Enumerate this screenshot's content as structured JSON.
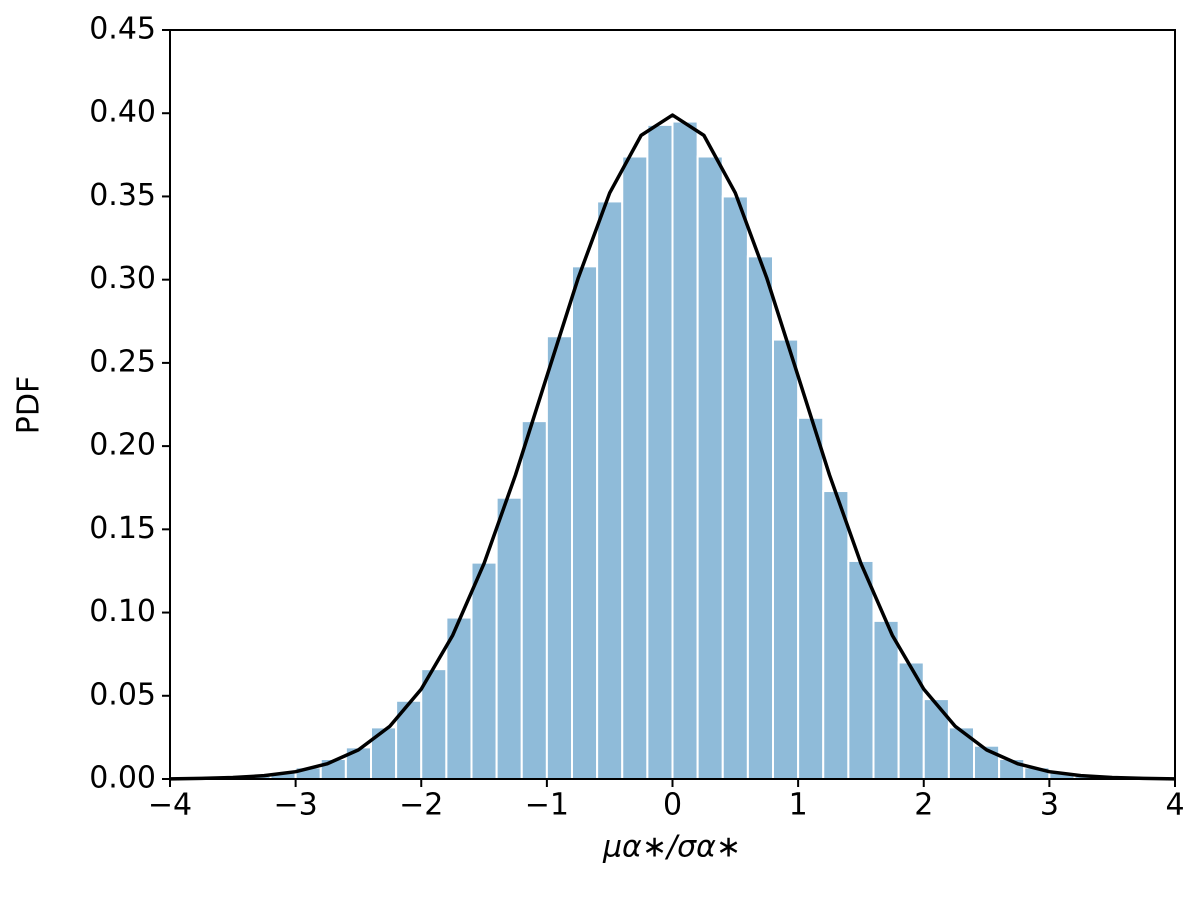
{
  "chart_data": {
    "type": "histogram",
    "xlabel": "μα∗/σα∗",
    "ylabel": "PDF",
    "bins": [
      -3.4,
      -3.2,
      -3.0,
      -2.8,
      -2.6,
      -2.4,
      -2.2,
      -2.0,
      -1.8,
      -1.6,
      -1.4,
      -1.2,
      -1.0,
      -0.8,
      -0.6,
      -0.4,
      -0.2,
      0,
      0.2,
      0.4,
      0.6,
      0.8,
      1.0,
      1.2,
      1.4,
      1.6,
      1.8,
      2.0,
      2.2,
      2.4,
      2.6,
      2.8,
      3.0,
      3.2,
      3.4
    ],
    "values": [
      0.002,
      0.004,
      0.007,
      0.012,
      0.019,
      0.031,
      0.047,
      0.066,
      0.097,
      0.13,
      0.169,
      0.215,
      0.266,
      0.308,
      0.347,
      0.374,
      0.393,
      0.395,
      0.374,
      0.35,
      0.314,
      0.264,
      0.217,
      0.173,
      0.131,
      0.095,
      0.07,
      0.048,
      0.031,
      0.02,
      0.012,
      0.007,
      0.004,
      0.002
    ],
    "color": "#8fbbd9",
    "curve": {
      "type": "line",
      "color": "#000000",
      "x": [
        -4,
        -3.75,
        -3.5,
        -3.25,
        -3,
        -2.75,
        -2.5,
        -2.25,
        -2,
        -1.75,
        -1.5,
        -1.25,
        -1,
        -0.75,
        -0.5,
        -0.25,
        0,
        0.25,
        0.5,
        0.75,
        1,
        1.25,
        1.5,
        1.75,
        2,
        2.25,
        2.5,
        2.75,
        3,
        3.25,
        3.5,
        3.75,
        4
      ],
      "y": [
        0.0001,
        0.0004,
        0.0009,
        0.002,
        0.0044,
        0.0091,
        0.0175,
        0.0317,
        0.054,
        0.0863,
        0.1295,
        0.1826,
        0.242,
        0.3011,
        0.3521,
        0.3867,
        0.3989,
        0.3867,
        0.3521,
        0.3011,
        0.242,
        0.1826,
        0.1295,
        0.0863,
        0.054,
        0.0317,
        0.0175,
        0.0091,
        0.0044,
        0.002,
        0.0009,
        0.0004,
        0.0001
      ]
    },
    "xlim": [
      -4,
      4
    ],
    "ylim": [
      0,
      0.45
    ],
    "xticks": [
      {
        "value": -4,
        "label": "−4"
      },
      {
        "value": -3,
        "label": "−3"
      },
      {
        "value": -2,
        "label": "−2"
      },
      {
        "value": -1,
        "label": "−1"
      },
      0,
      1,
      2,
      3,
      4
    ],
    "yticks": [
      {
        "value": 0,
        "label": "0.00"
      },
      0.05,
      {
        "value": 0.1,
        "label": "0.10"
      },
      0.15,
      {
        "value": 0.2,
        "label": "0.20"
      },
      0.25,
      {
        "value": 0.3,
        "label": "0.30"
      },
      0.35,
      {
        "value": 0.4,
        "label": "0.40"
      },
      0.45
    ]
  }
}
